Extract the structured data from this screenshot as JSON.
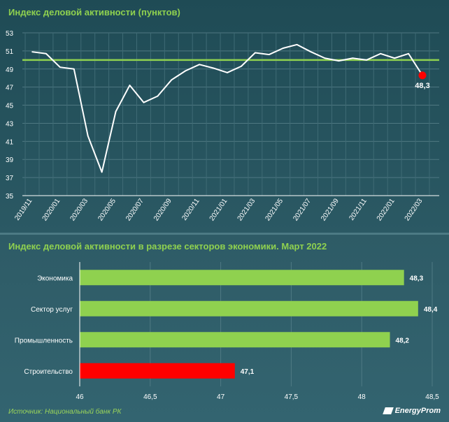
{
  "chart_data": [
    {
      "type": "line",
      "title": "Индекс деловой активности (пунктов)",
      "y_ticks": [
        53,
        51,
        49,
        47,
        45,
        43,
        41,
        39,
        37,
        35
      ],
      "ylim": [
        35,
        53
      ],
      "reference_line": 50,
      "x": [
        "2019/11",
        "2019/12",
        "2020/01",
        "2020/02",
        "2020/03",
        "2020/04",
        "2020/05",
        "2020/06",
        "2020/07",
        "2020/08",
        "2020/09",
        "2020/10",
        "2020/11",
        "2020/12",
        "2021/01",
        "2021/02",
        "2021/03",
        "2021/04",
        "2021/05",
        "2021/06",
        "2021/07",
        "2021/08",
        "2021/09",
        "2021/10",
        "2021/11",
        "2021/12",
        "2022/01",
        "2022/02",
        "2022/03"
      ],
      "values": [
        50.9,
        50.7,
        49.2,
        49.0,
        41.6,
        37.6,
        44.3,
        47.2,
        45.3,
        46.0,
        47.8,
        48.8,
        49.5,
        49.1,
        48.6,
        49.3,
        50.8,
        50.6,
        51.3,
        51.7,
        50.9,
        50.2,
        49.9,
        50.2,
        50.0,
        50.7,
        50.2,
        50.7,
        48.3
      ],
      "x_tick_labels": [
        "2019/11",
        "2020/01",
        "2020/03",
        "2020/05",
        "2020/07",
        "2020/09",
        "2020/11",
        "2021/01",
        "2021/03",
        "2021/05",
        "2021/07",
        "2021/09",
        "2021/11",
        "2022/01",
        "2022/03"
      ],
      "last_point_label": "48,3",
      "colors": {
        "line": "#ffffff",
        "reference": "#8fd14f",
        "last_point": "#ff0000"
      }
    },
    {
      "type": "bar",
      "orientation": "horizontal",
      "title": "Индекс деловой активности в разрезе секторов экономики. Март 2022",
      "categories": [
        "Экономика",
        "Сектор услуг",
        "Промышленность",
        "Строительство"
      ],
      "values": [
        48.3,
        48.4,
        48.2,
        47.1
      ],
      "value_labels": [
        "48,3",
        "48,4",
        "48,2",
        "47,1"
      ],
      "bar_colors": [
        "#8fd14f",
        "#8fd14f",
        "#8fd14f",
        "#ff0000"
      ],
      "xlim": [
        46,
        48.5
      ],
      "x_ticks": [
        46,
        46.5,
        47,
        47.5,
        48,
        48.5
      ],
      "x_tick_labels": [
        "46",
        "46,5",
        "47",
        "47,5",
        "48",
        "48,5"
      ]
    }
  ],
  "footer": {
    "source": "Источник: Национальный банк РК",
    "logo": "EnergyProm"
  }
}
